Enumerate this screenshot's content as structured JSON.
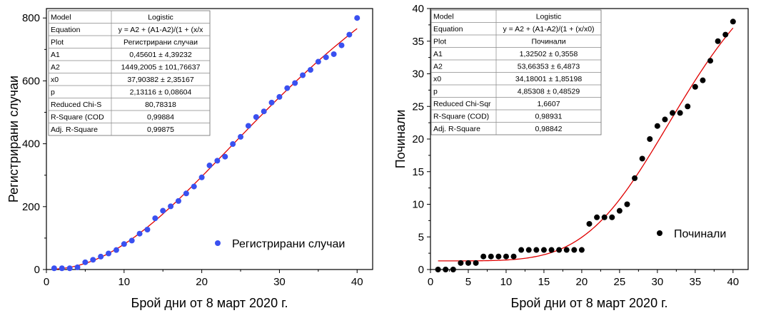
{
  "chart_data": [
    {
      "type": "scatter",
      "xlabel": "Брой дни от 8 март 2020 г.",
      "ylabel": "Регистрирани случаи",
      "xlim": [
        0,
        42
      ],
      "ylim": [
        0,
        830
      ],
      "xticks": [
        0,
        10,
        20,
        30,
        40
      ],
      "yticks": [
        0,
        200,
        400,
        600,
        800
      ],
      "marker_color": "#3a50f0",
      "fit_color": "#e00000",
      "legend": {
        "label": "Регистрирани случаи",
        "position": "bottom-right"
      },
      "series": [
        {
          "name": "Регистрирани случаи",
          "x": [
            1,
            2,
            3,
            4,
            5,
            6,
            7,
            8,
            9,
            10,
            11,
            12,
            13,
            14,
            15,
            16,
            17,
            18,
            19,
            20,
            21,
            22,
            23,
            24,
            25,
            26,
            27,
            28,
            29,
            30,
            31,
            32,
            33,
            34,
            35,
            36,
            37,
            38,
            39,
            40
          ],
          "y": [
            4,
            4,
            4,
            7,
            23,
            31,
            41,
            51,
            62,
            81,
            92,
            114,
            127,
            163,
            187,
            201,
            218,
            242,
            264,
            293,
            331,
            346,
            359,
            399,
            422,
            457,
            485,
            503,
            531,
            549,
            577,
            593,
            618,
            635,
            661,
            675,
            685,
            713,
            747,
            800
          ]
        }
      ],
      "fit": {
        "model": "logistic",
        "A1": 0.45601,
        "A2": 1449.2005,
        "x0": 37.90382,
        "p": 2.13116,
        "xrange": [
          1,
          40
        ]
      },
      "stats_table": [
        [
          "Model",
          "Logistic"
        ],
        [
          "Equation",
          "y = A2 + (A1-A2)/(1 + (x/x"
        ],
        [
          "Plot",
          "Регистрирани случаи"
        ],
        [
          "A1",
          "0,45601 ± 4,39232"
        ],
        [
          "A2",
          "1449,2005 ± 101,76637"
        ],
        [
          "x0",
          "37,90382 ± 2,35167"
        ],
        [
          "p",
          "2,13116 ± 0,08604"
        ],
        [
          "Reduced Chi-S",
          "80,78318"
        ],
        [
          "R-Square (COD",
          "0,99884"
        ],
        [
          "Adj. R-Square",
          "0,99875"
        ]
      ]
    },
    {
      "type": "scatter",
      "xlabel": "Брой дни от 8 март 2020 г.",
      "ylabel": "Починали",
      "xlim": [
        0,
        42
      ],
      "ylim": [
        0,
        40
      ],
      "xticks": [
        0,
        5,
        10,
        15,
        20,
        25,
        30,
        35,
        40
      ],
      "yticks": [
        0,
        5,
        10,
        15,
        20,
        25,
        30,
        35,
        40
      ],
      "marker_color": "#000000",
      "fit_color": "#e00000",
      "legend": {
        "label": "Починали",
        "position": "center-right"
      },
      "series": [
        {
          "name": "Починали",
          "x": [
            1,
            2,
            3,
            4,
            5,
            6,
            7,
            8,
            9,
            10,
            11,
            12,
            13,
            14,
            15,
            16,
            17,
            18,
            19,
            20,
            21,
            22,
            23,
            24,
            25,
            26,
            27,
            28,
            29,
            30,
            31,
            32,
            33,
            34,
            35,
            36,
            37,
            38,
            39,
            40
          ],
          "y": [
            0,
            0,
            0,
            1,
            1,
            1,
            2,
            2,
            2,
            2,
            2,
            3,
            3,
            3,
            3,
            3,
            3,
            3,
            3,
            3,
            7,
            8,
            8,
            8,
            9,
            10,
            14,
            17,
            20,
            22,
            23,
            24,
            24,
            25,
            28,
            29,
            32,
            35,
            36,
            38
          ]
        }
      ],
      "fit": {
        "model": "logistic",
        "A1": 1.32502,
        "A2": 53.66353,
        "x0": 34.18001,
        "p": 4.85308,
        "xrange": [
          1,
          40
        ]
      },
      "stats_table": [
        [
          "Model",
          "Logistic"
        ],
        [
          "Equation",
          "y = A2 + (A1-A2)/(1 + (x/x0)"
        ],
        [
          "Plot",
          "Починали"
        ],
        [
          "A1",
          "1,32502 ± 0,3558"
        ],
        [
          "A2",
          "53,66353 ± 6,4873"
        ],
        [
          "x0",
          "34,18001 ± 1,85198"
        ],
        [
          "p",
          "4,85308 ± 0,48529"
        ],
        [
          "Reduced Chi-Sqr",
          "1,6607"
        ],
        [
          "R-Square (COD)",
          "0,98931"
        ],
        [
          "Adj. R-Square",
          "0,98842"
        ]
      ]
    }
  ]
}
